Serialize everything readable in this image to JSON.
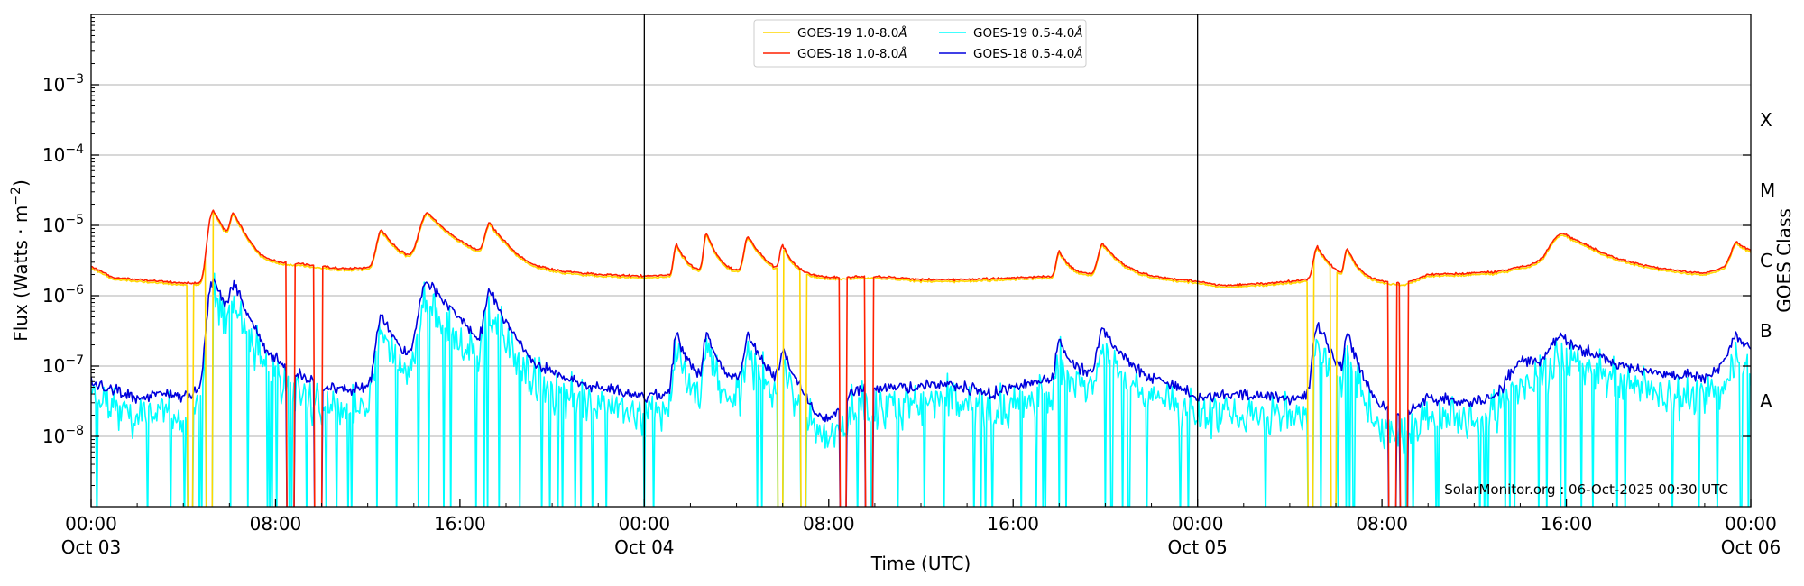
{
  "chart_data": {
    "type": "line",
    "xlabel": "Time (UTC)",
    "ylabel": "Flux (Watts · m",
    "ylabel_exp": "−2",
    "ylabel_close": ")",
    "right_ylabel": "GOES Class",
    "yscale": "log",
    "ylim": [
      1e-09,
      0.01
    ],
    "xlim_hours": [
      0,
      72
    ],
    "grid": "horizontal",
    "legend_position": "top-center",
    "x_ticks": [
      {
        "hours": 0,
        "line1": "00:00",
        "line2": "Oct 03"
      },
      {
        "hours": 8,
        "line1": "08:00",
        "line2": ""
      },
      {
        "hours": 16,
        "line1": "16:00",
        "line2": ""
      },
      {
        "hours": 24,
        "line1": "00:00",
        "line2": "Oct 04"
      },
      {
        "hours": 32,
        "line1": "08:00",
        "line2": ""
      },
      {
        "hours": 40,
        "line1": "16:00",
        "line2": ""
      },
      {
        "hours": 48,
        "line1": "00:00",
        "line2": "Oct 05"
      },
      {
        "hours": 56,
        "line1": "08:00",
        "line2": ""
      },
      {
        "hours": 64,
        "line1": "16:00",
        "line2": ""
      },
      {
        "hours": 72,
        "line1": "00:00",
        "line2": "Oct 06"
      }
    ],
    "y_ticks": [
      {
        "exp": -8,
        "base": "10",
        "sup": "−8"
      },
      {
        "exp": -7,
        "base": "10",
        "sup": "−7"
      },
      {
        "exp": -6,
        "base": "10",
        "sup": "−6"
      },
      {
        "exp": -5,
        "base": "10",
        "sup": "−5"
      },
      {
        "exp": -4,
        "base": "10",
        "sup": "−4"
      },
      {
        "exp": -3,
        "base": "10",
        "sup": "−3"
      }
    ],
    "goes_classes": [
      {
        "label": "A",
        "exp": -7.5
      },
      {
        "label": "B",
        "exp": -6.5
      },
      {
        "label": "C",
        "exp": -5.5
      },
      {
        "label": "M",
        "exp": -4.5
      },
      {
        "label": "X",
        "exp": -3.5
      }
    ],
    "day_boundaries_hours": [
      24,
      48
    ],
    "credit": "SolarMonitor.org : 06-Oct-2025 00:30 UTC",
    "series_legend": [
      {
        "name": "GOES-19 1.0-8.0",
        "unit": "Å",
        "color": "#FFD700"
      },
      {
        "name": "GOES-19 0.5-4.0",
        "unit": "Å",
        "color": "#00FFFF"
      },
      {
        "name": "GOES-18 1.0-8.0",
        "unit": "Å",
        "color": "#FF2000"
      },
      {
        "name": "GOES-18 0.5-4.0",
        "unit": "Å",
        "color": "#0000DD"
      }
    ],
    "baseline_long": [
      [
        0,
        2.6e-06
      ],
      [
        1,
        1.8e-06
      ],
      [
        3,
        1.6e-06
      ],
      [
        4,
        1.5e-06
      ],
      [
        5.2,
        1.5e-06
      ],
      [
        8,
        2.6e-06
      ],
      [
        9,
        2.8e-06
      ],
      [
        10,
        2.6e-06
      ],
      [
        11,
        2.4e-06
      ],
      [
        12,
        2.5e-06
      ],
      [
        14,
        2.7e-06
      ],
      [
        16,
        3e-06
      ],
      [
        18,
        2.8e-06
      ],
      [
        19,
        2.3e-06
      ],
      [
        20,
        2.2e-06
      ],
      [
        22,
        2e-06
      ],
      [
        24,
        1.9e-06
      ],
      [
        26,
        2e-06
      ],
      [
        28,
        2.1e-06
      ],
      [
        29,
        2.2e-06
      ],
      [
        30,
        2e-06
      ],
      [
        32,
        1.8e-06
      ],
      [
        34,
        1.9e-06
      ],
      [
        36,
        1.7e-06
      ],
      [
        38,
        1.7e-06
      ],
      [
        40,
        1.8e-06
      ],
      [
        42,
        1.9e-06
      ],
      [
        44,
        2e-06
      ],
      [
        46,
        1.8e-06
      ],
      [
        48,
        1.6e-06
      ],
      [
        49,
        1.4e-06
      ],
      [
        51,
        1.5e-06
      ],
      [
        53,
        1.7e-06
      ],
      [
        55,
        1.6e-06
      ],
      [
        57,
        1.5e-06
      ],
      [
        58,
        2e-06
      ],
      [
        60,
        2.1e-06
      ],
      [
        61,
        2.2e-06
      ],
      [
        63,
        3e-06
      ],
      [
        64,
        3.8e-06
      ],
      [
        66,
        2.6e-06
      ],
      [
        68,
        2.2e-06
      ],
      [
        70,
        2e-06
      ],
      [
        71,
        2.6e-06
      ],
      [
        72,
        2.9e-06
      ]
    ],
    "baseline_short": [
      [
        0,
        6e-08
      ],
      [
        1,
        4.5e-08
      ],
      [
        2,
        3.5e-08
      ],
      [
        3,
        4e-08
      ],
      [
        4,
        4e-08
      ],
      [
        5,
        4.5e-08
      ],
      [
        7,
        4e-08
      ],
      [
        8,
        7e-08
      ],
      [
        9,
        6.5e-08
      ],
      [
        10,
        5e-08
      ],
      [
        11,
        4.5e-08
      ],
      [
        12,
        5e-08
      ],
      [
        13,
        6e-08
      ],
      [
        14,
        5e-08
      ],
      [
        15,
        4e-08
      ],
      [
        16,
        8e-08
      ],
      [
        17,
        5.5e-08
      ],
      [
        18,
        4.5e-08
      ],
      [
        20,
        6e-08
      ],
      [
        22,
        5e-08
      ],
      [
        24,
        3.5e-08
      ],
      [
        26,
        5e-08
      ],
      [
        28,
        6e-08
      ],
      [
        30,
        5e-08
      ],
      [
        31,
        2.5e-08
      ],
      [
        32,
        1.5e-08
      ],
      [
        33,
        4.5e-08
      ],
      [
        35,
        5e-08
      ],
      [
        37,
        5.5e-08
      ],
      [
        39,
        4e-08
      ],
      [
        41,
        6e-08
      ],
      [
        43,
        8e-08
      ],
      [
        45,
        7e-08
      ],
      [
        47,
        5e-08
      ],
      [
        48,
        3.5e-08
      ],
      [
        50,
        4e-08
      ],
      [
        52,
        3.5e-08
      ],
      [
        54,
        4e-08
      ],
      [
        55,
        2.5e-08
      ],
      [
        56,
        2e-08
      ],
      [
        57,
        2e-08
      ],
      [
        58,
        3.5e-08
      ],
      [
        60,
        3e-08
      ],
      [
        61,
        4e-08
      ],
      [
        62,
        1.2e-07
      ],
      [
        64,
        9e-08
      ],
      [
        66,
        7.5e-08
      ],
      [
        68,
        7e-08
      ],
      [
        70,
        6.5e-08
      ],
      [
        71,
        1.2e-07
      ],
      [
        72,
        9e-08
      ]
    ],
    "flares": [
      {
        "hours": 5.3,
        "long_peak": 1.5e-05,
        "short_peak": 1.6e-06,
        "width": 0.5
      },
      {
        "hours": 6.2,
        "long_peak": 9.5e-06,
        "short_peak": 1.1e-06,
        "width": 0.4
      },
      {
        "hours": 12.6,
        "long_peak": 6e-06,
        "short_peak": 4.5e-07,
        "width": 0.5
      },
      {
        "hours": 14.6,
        "long_peak": 1.2e-05,
        "short_peak": 1.5e-06,
        "width": 0.8
      },
      {
        "hours": 17.3,
        "long_peak": 7e-06,
        "short_peak": 9.5e-07,
        "width": 0.5
      },
      {
        "hours": 25.4,
        "long_peak": 3.5e-06,
        "short_peak": 2.5e-07,
        "width": 0.3
      },
      {
        "hours": 26.7,
        "long_peak": 5.5e-06,
        "short_peak": 2.5e-07,
        "width": 0.3
      },
      {
        "hours": 28.5,
        "long_peak": 4.8e-06,
        "short_peak": 2e-07,
        "width": 0.4
      },
      {
        "hours": 30.0,
        "long_peak": 3e-06,
        "short_peak": 1.2e-07,
        "width": 0.3
      },
      {
        "hours": 42.0,
        "long_peak": 2.5e-06,
        "short_peak": 1.6e-07,
        "width": 0.3
      },
      {
        "hours": 43.9,
        "long_peak": 3.5e-06,
        "short_peak": 2.5e-07,
        "width": 0.5
      },
      {
        "hours": 53.2,
        "long_peak": 3.3e-06,
        "short_peak": 3.8e-07,
        "width": 0.4
      },
      {
        "hours": 54.5,
        "long_peak": 2.8e-06,
        "short_peak": 2.3e-07,
        "width": 0.3
      },
      {
        "hours": 63.8,
        "long_peak": 4e-06,
        "short_peak": 1.6e-07,
        "width": 1.2
      },
      {
        "hours": 71.4,
        "long_peak": 3.1e-06,
        "short_peak": 1.6e-07,
        "width": 0.6
      }
    ],
    "dropouts_goes18": [
      [
        8.5,
        8.8
      ],
      [
        9.7,
        10.0
      ],
      [
        32.5,
        32.8
      ],
      [
        33.6,
        33.9
      ],
      [
        56.3,
        56.6
      ],
      [
        56.8,
        57.1
      ]
    ],
    "dropouts_goes19": [
      [
        4.2,
        4.4
      ],
      [
        5.0,
        5.3
      ],
      [
        29.8,
        30.0
      ],
      [
        30.8,
        31.0
      ],
      [
        52.8,
        53.0
      ],
      [
        53.8,
        54.0
      ]
    ]
  }
}
